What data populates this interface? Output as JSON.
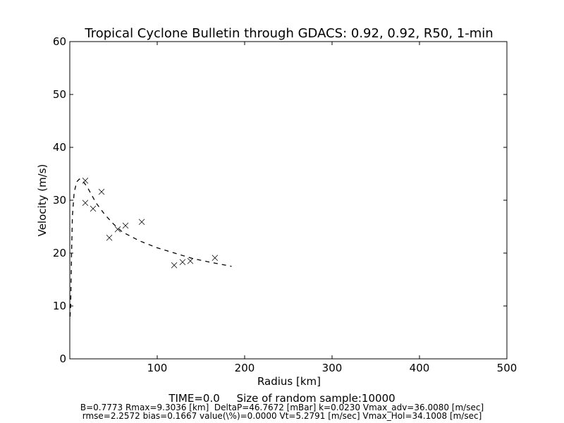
{
  "chart_data": {
    "type": "scatter",
    "title": "Tropical Cyclone Bulletin through GDACS: 0.92, 0.92, R50, 1-min",
    "xlabel": "Radius [km]",
    "ylabel": "Velocity (m/s)",
    "xlim": [
      0,
      500
    ],
    "ylim": [
      0,
      60
    ],
    "xticks": [
      100,
      200,
      300,
      400,
      500
    ],
    "yticks": [
      0,
      10,
      20,
      30,
      40,
      50,
      60
    ],
    "grid": false,
    "series": [
      {
        "style": "markers-x",
        "color": "#000000",
        "points": [
          [
            17.7,
            33.7
          ],
          [
            17.7,
            29.5
          ],
          [
            26.6,
            28.4
          ],
          [
            36.3,
            31.6
          ],
          [
            45.2,
            22.9
          ],
          [
            54.8,
            24.5
          ],
          [
            63.7,
            25.2
          ],
          [
            82.3,
            25.9
          ],
          [
            119.4,
            17.7
          ],
          [
            129,
            18.3
          ],
          [
            137.9,
            18.5
          ],
          [
            166,
            19.1
          ]
        ]
      },
      {
        "style": "dashed-line",
        "color": "#000000",
        "points": [
          [
            0.3,
            8
          ],
          [
            1,
            10
          ],
          [
            2,
            20
          ],
          [
            3,
            27
          ],
          [
            5,
            31.5
          ],
          [
            8,
            33.5
          ],
          [
            11,
            34
          ],
          [
            15,
            33.6
          ],
          [
            20,
            32.5
          ],
          [
            30,
            29.5
          ],
          [
            40,
            27.3
          ],
          [
            50,
            25.5
          ],
          [
            60,
            24
          ],
          [
            80,
            22.3
          ],
          [
            100,
            21
          ],
          [
            120,
            20
          ],
          [
            140,
            19
          ],
          [
            160,
            18.3
          ],
          [
            185,
            17.5
          ]
        ]
      }
    ],
    "footer": {
      "line1": "TIME=0.0     Size of random sample:10000",
      "line2": "B=0.7773 Rmax=9.3036 [km]  DeltaP=46.7672 [mBar] k=0.0230 Vmax_adv=36.0080 [m/sec]",
      "line3": "rmse=2.2572 bias=0.1667 value(\\%)=0.0000 Vt=5.2791 [m/sec] Vmax_Hol=34.1008 [m/sec]"
    }
  }
}
